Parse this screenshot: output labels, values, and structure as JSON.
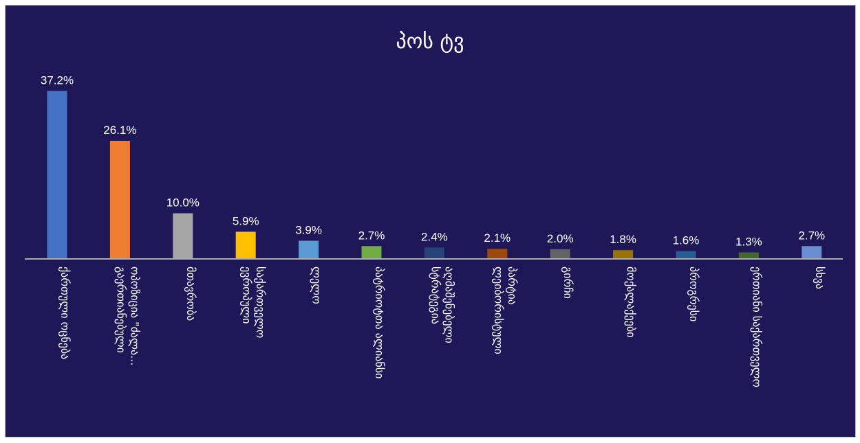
{
  "chart_data": {
    "type": "bar",
    "title": "პოს ტვ",
    "xlabel": "",
    "ylabel": "",
    "grid": false,
    "legend": "none",
    "ylim": [
      0,
      40
    ],
    "value_suffix": "%",
    "categories": [
      [
        "ქართული ოცნება"
      ],
      [
        "გაერთიანებული",
        "ოპოზიცია \"ძალა..."
      ],
      [
        "მთავრობა"
      ],
      [
        "ევროპული",
        "საქართველო"
      ],
      [
        "ლელო"
      ],
      [
        "პატრიოტთა ალიანსი"
      ],
      [
        "სტრატეგია",
        "აღმაშენებელი"
      ],
      [
        "ლეიბორისტული",
        "პარტია"
      ],
      [
        "გირჩი"
      ],
      [
        "მოქალაქეები"
      ],
      [
        "პროგრესი"
      ],
      [
        "ერთიანი საქართველო"
      ],
      [
        "სხვა"
      ]
    ],
    "values": [
      37.2,
      26.1,
      10.0,
      5.9,
      3.9,
      2.7,
      2.4,
      2.1,
      2.0,
      1.8,
      1.6,
      1.3,
      2.7
    ],
    "value_labels": [
      "37.2%",
      "26.1%",
      "10.0%",
      "5.9%",
      "3.9%",
      "2.7%",
      "2.4%",
      "2.1%",
      "2.0%",
      "1.8%",
      "1.6%",
      "1.3%",
      "2.7%"
    ],
    "colors": [
      "#4472c4",
      "#ed7d31",
      "#a5a5a5",
      "#ffc000",
      "#5b9bd5",
      "#70ad47",
      "#264478",
      "#9e480e",
      "#636363",
      "#997300",
      "#255e91",
      "#43682b",
      "#698ed0"
    ]
  }
}
